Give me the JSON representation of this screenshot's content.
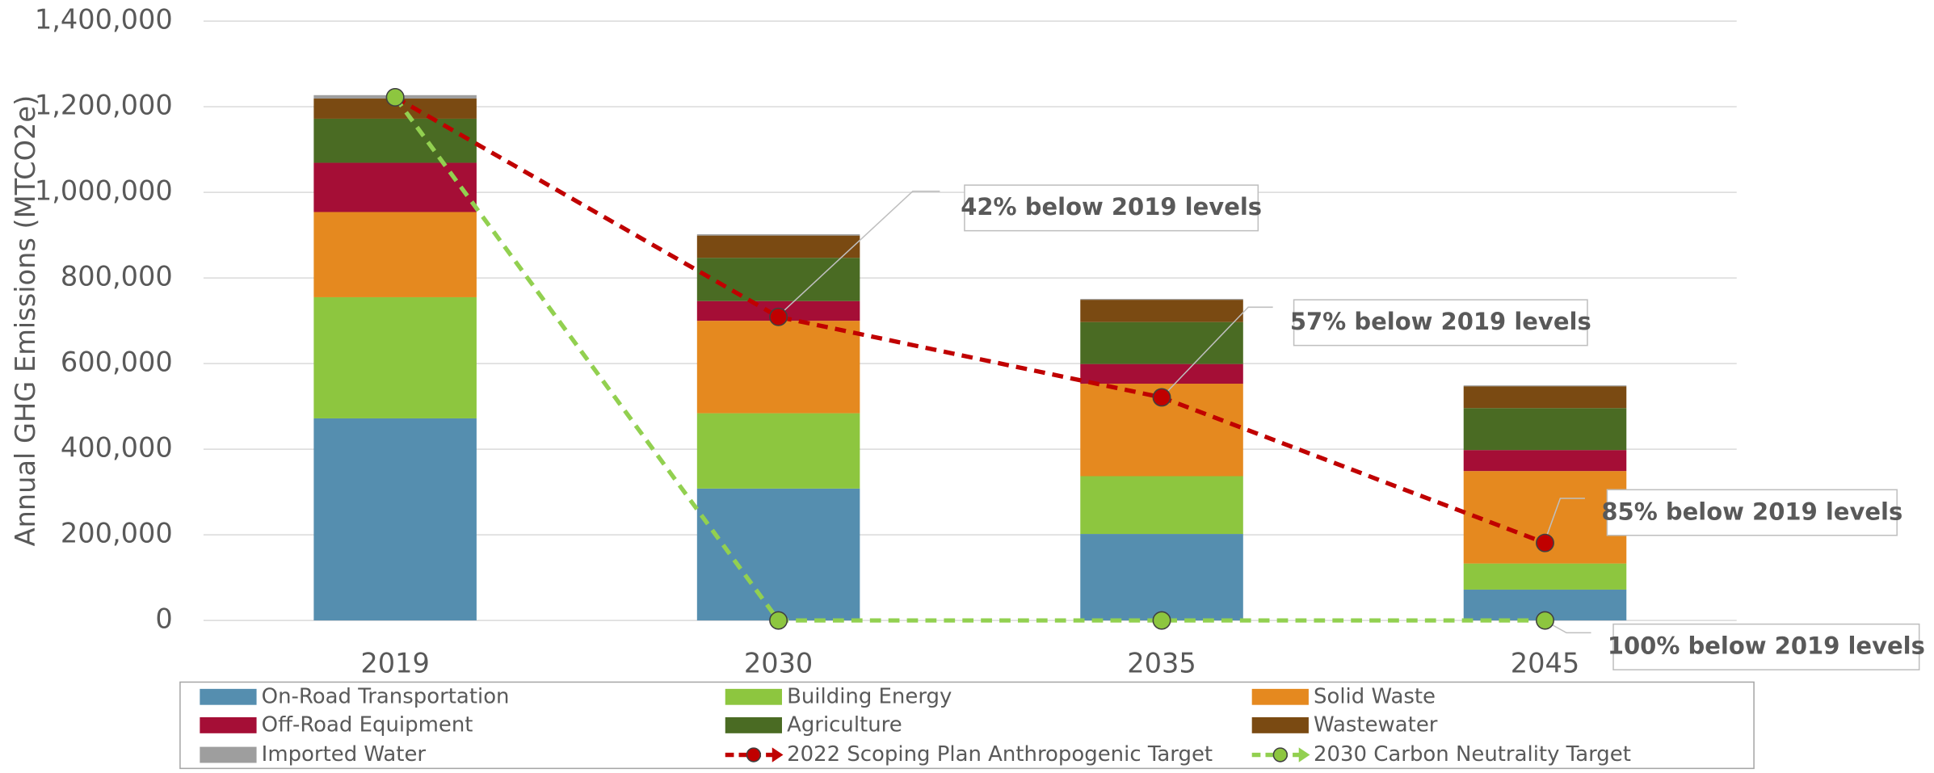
{
  "chart_data": {
    "type": "stacked_bar",
    "y_label": "Annual GHG Emissions (MTCO2e)",
    "categories": [
      "2019",
      "2030",
      "2035",
      "2045"
    ],
    "series": [
      {
        "name": "On-Road Transportation",
        "color": "#558eaf",
        "values": [
          472000,
          308000,
          202000,
          72000
        ]
      },
      {
        "name": "Building Energy",
        "color": "#8dc63f",
        "values": [
          283000,
          176000,
          135000,
          61000
        ]
      },
      {
        "name": "Solid Waste",
        "color": "#e5891f",
        "values": [
          199000,
          216000,
          216000,
          216000
        ]
      },
      {
        "name": "Off-Road Equipment",
        "color": "#a50e36",
        "values": [
          115000,
          46000,
          46000,
          49000
        ]
      },
      {
        "name": "Agriculture",
        "color": "#4a6b23",
        "values": [
          103000,
          101000,
          98000,
          98000
        ]
      },
      {
        "name": "Wastewater",
        "color": "#7a4a12",
        "values": [
          47000,
          52000,
          52000,
          51000
        ]
      },
      {
        "name": "Imported Water",
        "color": "#9e9e9e",
        "values": [
          8000,
          3000,
          2000,
          2000
        ]
      }
    ],
    "lines": [
      {
        "name": "2022 Scoping Plan Anthropogenic Target",
        "color": "#c00000",
        "marker_color": "#c00000",
        "values": [
          1222000,
          709000,
          521000,
          181000
        ]
      },
      {
        "name": "2030 Carbon Neutrality Target",
        "color": "#92d050",
        "marker_color": "#8dc63f",
        "values": [
          1222000,
          0,
          0,
          0
        ]
      }
    ],
    "annotations": [
      {
        "text": "42% below 2019 levels"
      },
      {
        "text": "57% below 2019 levels"
      },
      {
        "text": "85% below 2019 levels"
      },
      {
        "text": "100% below 2019 levels"
      }
    ],
    "ylim": [
      0,
      1400000
    ],
    "yticks": [
      0,
      {
        "value": 200000,
        "label": "200,000"
      },
      {
        "value": 400000,
        "label": "400,000"
      },
      {
        "value": 600000,
        "label": "600,000"
      },
      {
        "value": 800000,
        "label": "800,000"
      },
      {
        "value": 1000000,
        "label": "1,000,000"
      },
      {
        "value": 1200000,
        "label": "1,200,000"
      },
      {
        "value": 1400000,
        "label": "1,400,000"
      }
    ],
    "grid": true
  }
}
